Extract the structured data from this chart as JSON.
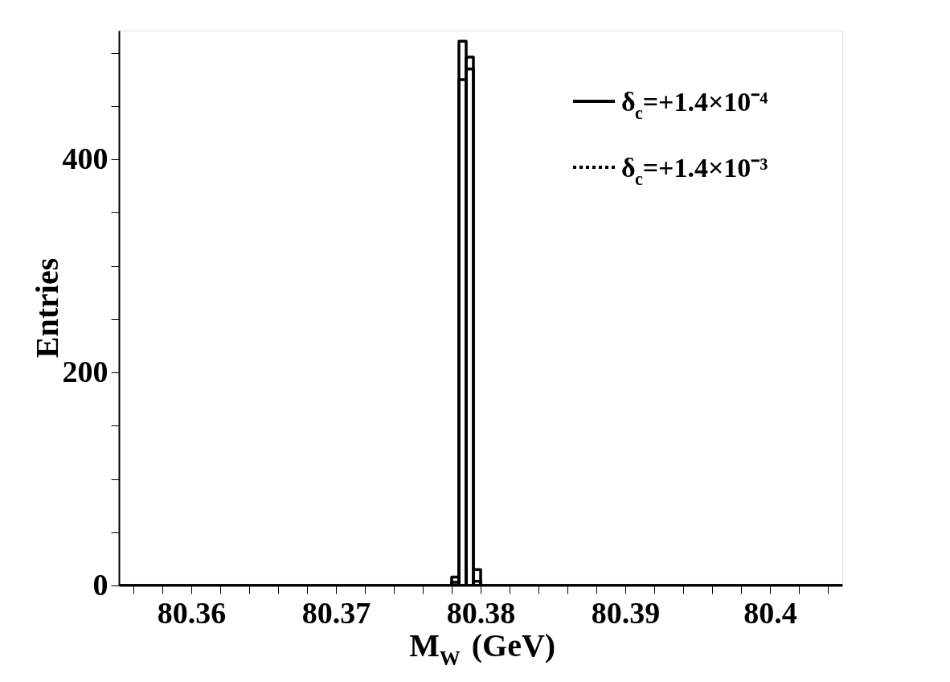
{
  "chart_data": {
    "type": "histogram",
    "xlabel": "M$_{W}$ (GeV)",
    "ylabel": "Entries",
    "bins": [
      80.355,
      80.378,
      80.3785,
      80.379,
      80.3795,
      80.38,
      80.405
    ],
    "series": [
      {
        "name": "δ$_{c}$=+1.4×10⁻⁴",
        "color": "#000000",
        "line_style": "solid",
        "values": [
          0,
          3,
          511,
          485,
          4,
          0
        ]
      },
      {
        "name": "δ$_{c}$=+1.4×10⁻³",
        "color": "#000000",
        "line_style": "dotted",
        "values": [
          0,
          8,
          475,
          496,
          15,
          0
        ]
      }
    ],
    "xlim": [
      80.355,
      80.405
    ],
    "xticks": [
      {
        "value": 80.356,
        "label": null
      },
      {
        "value": 80.358,
        "label": null
      },
      80.36,
      {
        "value": 80.362,
        "label": null
      },
      {
        "value": 80.364,
        "label": null
      },
      {
        "value": 80.366,
        "label": null
      },
      {
        "value": 80.368,
        "label": null
      },
      80.37,
      {
        "value": 80.372,
        "label": null
      },
      {
        "value": 80.374,
        "label": null
      },
      {
        "value": 80.376,
        "label": null
      },
      {
        "value": 80.378,
        "label": null
      },
      80.38,
      {
        "value": 80.382,
        "label": null
      },
      {
        "value": 80.384,
        "label": null
      },
      {
        "value": 80.386,
        "label": null
      },
      {
        "value": 80.388,
        "label": null
      },
      80.39,
      {
        "value": 80.392,
        "label": null
      },
      {
        "value": 80.394,
        "label": null
      },
      {
        "value": 80.396,
        "label": null
      },
      {
        "value": 80.398,
        "label": null
      },
      80.4,
      {
        "value": 80.402,
        "label": null
      },
      {
        "value": 80.404,
        "label": null
      }
    ],
    "ylim": [
      0,
      521
    ],
    "yticks": [
      0,
      {
        "value": 50,
        "label": null
      },
      {
        "value": 100,
        "label": null
      },
      {
        "value": 150,
        "label": null
      },
      200,
      {
        "value": 250,
        "label": null
      },
      {
        "value": 300,
        "label": null
      },
      {
        "value": 350,
        "label": null
      },
      400,
      {
        "value": 450,
        "label": null
      },
      {
        "value": 500,
        "label": null
      }
    ],
    "grid": false,
    "legend": "top right"
  }
}
